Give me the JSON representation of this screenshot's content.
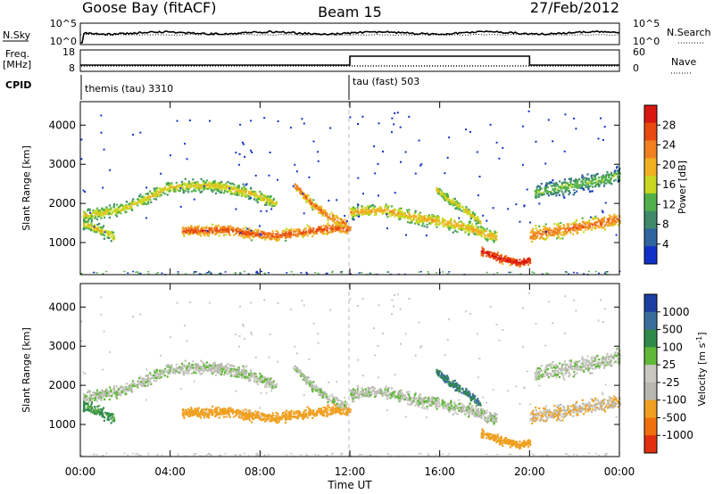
{
  "header": {
    "station": "Goose Bay (fitACF)",
    "beam": "Beam 15",
    "date": "27/Feb/2012"
  },
  "noise_panel": {
    "left_label": "N.Sky",
    "right_label": "N.Search",
    "left_ticks": [
      "10^5",
      "10^0"
    ],
    "right_ticks": [
      "10^5",
      "10^0"
    ]
  },
  "freq_panel": {
    "left_label_1": "Freq.",
    "left_label_2": "[MHz]",
    "right_label": "Nave",
    "left_ticks": [
      "18",
      "8"
    ],
    "right_ticks": [
      "60",
      "0"
    ]
  },
  "cpid": {
    "label": "CPID",
    "modes": [
      {
        "name": "themis (tau) 3310",
        "start_hour": 0
      },
      {
        "name": "tau (fast) 503",
        "start_hour": 12
      }
    ]
  },
  "power_panel": {
    "ylabel": "Slant Range [km]",
    "yticks": [
      "4000",
      "3000",
      "2000",
      "1000"
    ],
    "colorbar_label": "Power [dB]",
    "colorbar_ticks": [
      "28",
      "24",
      "20",
      "16",
      "12",
      "8",
      "4"
    ]
  },
  "velocity_panel": {
    "ylabel": "Slant Range [km]",
    "yticks": [
      "4000",
      "3000",
      "2000",
      "1000"
    ],
    "colorbar_label": "Velocity [m s",
    "colorbar_label_sup": "-1",
    "colorbar_label_end": "]",
    "colorbar_ticks": [
      "1000",
      "500",
      "100",
      "25",
      "-25",
      "-100",
      "-500",
      "-1000"
    ]
  },
  "xaxis": {
    "label": "Time UT",
    "ticks": [
      "00:00",
      "04:00",
      "08:00",
      "12:00",
      "16:00",
      "20:00",
      "00:00"
    ]
  },
  "chart_data": {
    "type": "heatmap",
    "x_range_hours": [
      0,
      24
    ],
    "y_range_km": [
      180,
      4600
    ],
    "mode_change_hour": 12,
    "power_colors": [
      "#1030c8",
      "#2e64a0",
      "#3e8a6a",
      "#52b04a",
      "#c8d820",
      "#f0b020",
      "#f08020",
      "#e84a10",
      "#d81810"
    ],
    "velocity_colors": [
      "#1a3fa0",
      "#3a6e9a",
      "#2f8a4a",
      "#60b838",
      "#c8c8c0",
      "#b8b8b0",
      "#f0a020",
      "#f07010",
      "#e03010"
    ],
    "bands": [
      {
        "name": "arc-1",
        "x": [
          0.1,
          2.0,
          4.0,
          6.0,
          7.5,
          8.7
        ],
        "y": [
          1700,
          1900,
          2450,
          2480,
          2300,
          2000
        ],
        "spread_km": 220,
        "power_db": 12,
        "velocity": 0
      },
      {
        "name": "low-band-1",
        "x": [
          4.5,
          5.5,
          6.5,
          7.5,
          8.5,
          9.5,
          10.5,
          11.5,
          12.0
        ],
        "y": [
          1320,
          1330,
          1350,
          1250,
          1200,
          1250,
          1350,
          1400,
          1350
        ],
        "spread_km": 180,
        "power_db": 20,
        "velocity": -200
      },
      {
        "name": "left-blob",
        "x": [
          0.1,
          0.6,
          1.2,
          1.5
        ],
        "y": [
          1500,
          1400,
          1250,
          1150
        ],
        "spread_km": 200,
        "power_db": 12,
        "velocity": 80
      },
      {
        "name": "arc-2",
        "x": [
          9.5,
          10.3,
          11.0,
          11.8
        ],
        "y": [
          2500,
          2000,
          1700,
          1500
        ],
        "spread_km": 160,
        "power_db": 18,
        "velocity": 0
      },
      {
        "name": "mid-band",
        "x": [
          12.0,
          13.5,
          15.0,
          16.5,
          17.5,
          18.5
        ],
        "y": [
          1800,
          1850,
          1650,
          1500,
          1350,
          1150
        ],
        "spread_km": 220,
        "power_db": 14,
        "velocity": 0
      },
      {
        "name": "dawn-patch",
        "x": [
          15.8,
          16.4,
          17.0,
          17.8
        ],
        "y": [
          2400,
          2100,
          1900,
          1550
        ],
        "spread_km": 160,
        "power_db": 12,
        "velocity": 300
      },
      {
        "name": "low-band-2",
        "x": [
          17.8,
          18.8,
          19.6,
          20.0
        ],
        "y": [
          800,
          600,
          500,
          600
        ],
        "spread_km": 160,
        "power_db": 24,
        "velocity": -150
      },
      {
        "name": "right-band",
        "x": [
          20.0,
          21.0,
          22.0,
          23.0,
          24.0
        ],
        "y": [
          1200,
          1300,
          1400,
          1500,
          1650
        ],
        "spread_km": 260,
        "power_db": 18,
        "velocity": -50
      },
      {
        "name": "right-upper",
        "x": [
          20.2,
          21.5,
          23.0,
          24.0
        ],
        "y": [
          2300,
          2450,
          2600,
          2750
        ],
        "spread_km": 300,
        "power_db": 8,
        "velocity": 0
      }
    ]
  }
}
